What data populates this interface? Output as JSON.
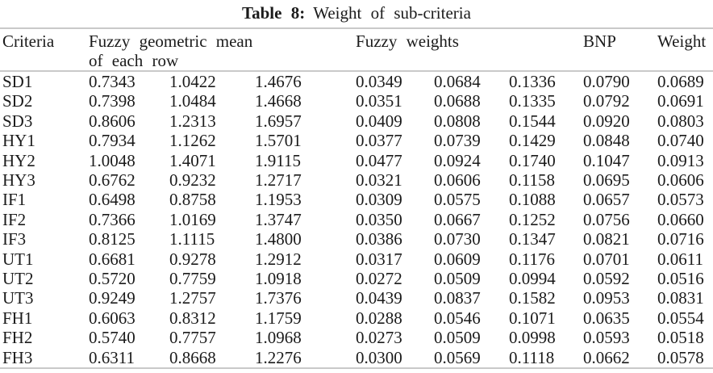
{
  "caption": {
    "label": "Table 8:",
    "text": "Weight of sub-criteria"
  },
  "table": {
    "headers": {
      "criteria": "Criteria",
      "fuzzy_geometric_mean_line1": "Fuzzy geometric mean",
      "fuzzy_geometric_mean_line2": "of each row",
      "fuzzy_weights": "Fuzzy weights",
      "bnp": "BNP",
      "weight": "Weight"
    },
    "rows": [
      {
        "criteria": "SD1",
        "fgm": [
          "0.7343",
          "1.0422",
          "1.4676"
        ],
        "fw": [
          "0.0349",
          "0.0684",
          "0.1336"
        ],
        "bnp": "0.0790",
        "weight": "0.0689"
      },
      {
        "criteria": "SD2",
        "fgm": [
          "0.7398",
          "1.0484",
          "1.4668"
        ],
        "fw": [
          "0.0351",
          "0.0688",
          "0.1335"
        ],
        "bnp": "0.0792",
        "weight": "0.0691"
      },
      {
        "criteria": "SD3",
        "fgm": [
          "0.8606",
          "1.2313",
          "1.6957"
        ],
        "fw": [
          "0.0409",
          "0.0808",
          "0.1544"
        ],
        "bnp": "0.0920",
        "weight": "0.0803"
      },
      {
        "criteria": "HY1",
        "fgm": [
          "0.7934",
          "1.1262",
          "1.5701"
        ],
        "fw": [
          "0.0377",
          "0.0739",
          "0.1429"
        ],
        "bnp": "0.0848",
        "weight": "0.0740"
      },
      {
        "criteria": "HY2",
        "fgm": [
          "1.0048",
          "1.4071",
          "1.9115"
        ],
        "fw": [
          "0.0477",
          "0.0924",
          "0.1740"
        ],
        "bnp": "0.1047",
        "weight": "0.0913"
      },
      {
        "criteria": "HY3",
        "fgm": [
          "0.6762",
          "0.9232",
          "1.2717"
        ],
        "fw": [
          "0.0321",
          "0.0606",
          "0.1158"
        ],
        "bnp": "0.0695",
        "weight": "0.0606"
      },
      {
        "criteria": "IF1",
        "fgm": [
          "0.6498",
          "0.8758",
          "1.1953"
        ],
        "fw": [
          "0.0309",
          "0.0575",
          "0.1088"
        ],
        "bnp": "0.0657",
        "weight": "0.0573"
      },
      {
        "criteria": "IF2",
        "fgm": [
          "0.7366",
          "1.0169",
          "1.3747"
        ],
        "fw": [
          "0.0350",
          "0.0667",
          "0.1252"
        ],
        "bnp": "0.0756",
        "weight": "0.0660"
      },
      {
        "criteria": "IF3",
        "fgm": [
          "0.8125",
          "1.1115",
          "1.4800"
        ],
        "fw": [
          "0.0386",
          "0.0730",
          "0.1347"
        ],
        "bnp": "0.0821",
        "weight": "0.0716"
      },
      {
        "criteria": "UT1",
        "fgm": [
          "0.6681",
          "0.9278",
          "1.2912"
        ],
        "fw": [
          "0.0317",
          "0.0609",
          "0.1176"
        ],
        "bnp": "0.0701",
        "weight": "0.0611"
      },
      {
        "criteria": "UT2",
        "fgm": [
          "0.5720",
          "0.7759",
          "1.0918"
        ],
        "fw": [
          "0.0272",
          "0.0509",
          "0.0994"
        ],
        "bnp": "0.0592",
        "weight": "0.0516"
      },
      {
        "criteria": "UT3",
        "fgm": [
          "0.9249",
          "1.2757",
          "1.7376"
        ],
        "fw": [
          "0.0439",
          "0.0837",
          "0.1582"
        ],
        "bnp": "0.0953",
        "weight": "0.0831"
      },
      {
        "criteria": "FH1",
        "fgm": [
          "0.6063",
          "0.8312",
          "1.1759"
        ],
        "fw": [
          "0.0288",
          "0.0546",
          "0.1071"
        ],
        "bnp": "0.0635",
        "weight": "0.0554"
      },
      {
        "criteria": "FH2",
        "fgm": [
          "0.5740",
          "0.7757",
          "1.0968"
        ],
        "fw": [
          "0.0273",
          "0.0509",
          "0.0998"
        ],
        "bnp": "0.0593",
        "weight": "0.0518"
      },
      {
        "criteria": "FH3",
        "fgm": [
          "0.6311",
          "0.8668",
          "1.2276"
        ],
        "fw": [
          "0.0300",
          "0.0569",
          "0.1118"
        ],
        "bnp": "0.0662",
        "weight": "0.0578"
      }
    ]
  }
}
